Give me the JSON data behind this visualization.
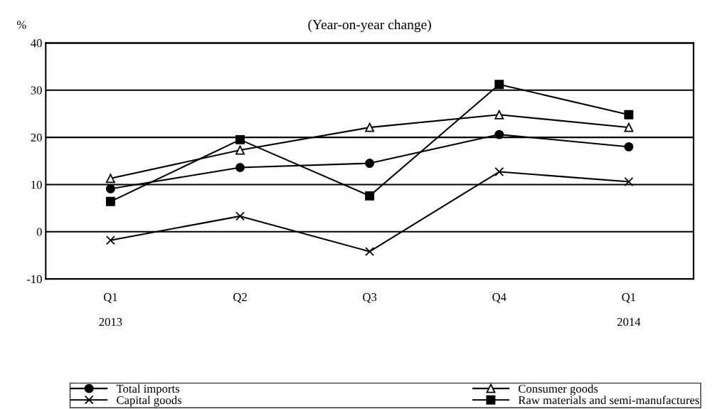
{
  "chart_data": {
    "type": "line",
    "title": "(Year-on-year change)",
    "ylabel": "%",
    "categories": [
      "Q1\n\n2013",
      "Q2",
      "Q3",
      "Q4",
      "Q1\n\n2014"
    ],
    "series": [
      {
        "name": "Total imports",
        "color": "#000000",
        "marker": "circle",
        "values": [
          9.1,
          13.6,
          14.5,
          20.6,
          18.0
        ]
      },
      {
        "name": "Consumer goods",
        "color": "#000000",
        "marker": "triangle",
        "values": [
          11.3,
          17.3,
          22.1,
          24.8,
          22.1
        ]
      },
      {
        "name": "Capital goods",
        "color": "#000000",
        "marker": "cross",
        "values": [
          -1.8,
          3.3,
          -4.2,
          12.7,
          10.6
        ]
      },
      {
        "name": "Raw materials and semi-manufactures",
        "color": "#000000",
        "marker": "square",
        "values": [
          6.4,
          19.5,
          7.6,
          31.2,
          24.8
        ]
      }
    ],
    "ylim": [
      -10,
      40
    ],
    "yticks": [
      -10,
      0,
      10,
      20,
      30,
      40
    ],
    "grid": "y",
    "legend": "bottom",
    "line_style": "solid"
  }
}
